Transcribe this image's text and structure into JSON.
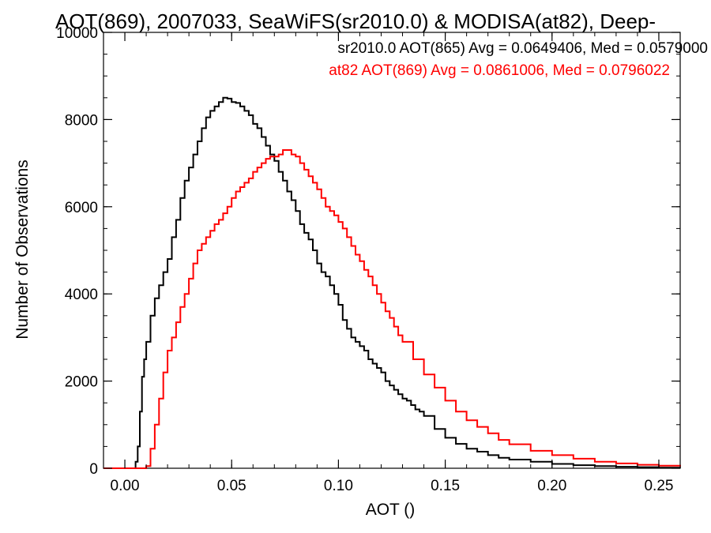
{
  "chart_data": {
    "type": "line",
    "title": "AOT(869), 2007033, SeaWiFS(sr2010.0) & MODISA(at82), Deep-",
    "xlabel": "AOT ()",
    "ylabel": "Number of Observations",
    "xlim": [
      -0.01,
      0.26
    ],
    "ylim": [
      0,
      10000
    ],
    "grid": false,
    "legend_placement": "top-right",
    "x_ticks": [
      0.0,
      0.05,
      0.1,
      0.15,
      0.2,
      0.25
    ],
    "x_tick_labels": [
      "0.00",
      "0.05",
      "0.10",
      "0.15",
      "0.20",
      "0.25"
    ],
    "y_ticks": [
      0,
      2000,
      4000,
      6000,
      8000,
      10000
    ],
    "y_tick_labels": [
      "0",
      "2000",
      "4000",
      "6000",
      "8000",
      "10000"
    ],
    "legend": [
      "sr2010.0 AOT(865) Avg = 0.0649406, Med = 0.0579000",
      "at82 AOT(869) Avg = 0.0861006, Med = 0.0796022"
    ],
    "series": [
      {
        "color": "#000000",
        "points": [
          [
            -0.01,
            0
          ],
          [
            0.004,
            0
          ],
          [
            0.005,
            150
          ],
          [
            0.006,
            500
          ],
          [
            0.007,
            1300
          ],
          [
            0.008,
            2100
          ],
          [
            0.009,
            2500
          ],
          [
            0.01,
            2900
          ],
          [
            0.012,
            3500
          ],
          [
            0.014,
            3900
          ],
          [
            0.016,
            4200
          ],
          [
            0.018,
            4500
          ],
          [
            0.02,
            4800
          ],
          [
            0.022,
            5300
          ],
          [
            0.024,
            5700
          ],
          [
            0.026,
            6200
          ],
          [
            0.028,
            6600
          ],
          [
            0.03,
            6900
          ],
          [
            0.032,
            7200
          ],
          [
            0.034,
            7500
          ],
          [
            0.036,
            7800
          ],
          [
            0.038,
            8050
          ],
          [
            0.04,
            8200
          ],
          [
            0.042,
            8300
          ],
          [
            0.044,
            8400
          ],
          [
            0.046,
            8500
          ],
          [
            0.048,
            8480
          ],
          [
            0.05,
            8400
          ],
          [
            0.052,
            8380
          ],
          [
            0.054,
            8300
          ],
          [
            0.056,
            8200
          ],
          [
            0.058,
            8100
          ],
          [
            0.06,
            7900
          ],
          [
            0.062,
            7800
          ],
          [
            0.064,
            7600
          ],
          [
            0.066,
            7400
          ],
          [
            0.068,
            7200
          ],
          [
            0.07,
            7050
          ],
          [
            0.072,
            6800
          ],
          [
            0.074,
            6600
          ],
          [
            0.076,
            6350
          ],
          [
            0.078,
            6150
          ],
          [
            0.08,
            5900
          ],
          [
            0.082,
            5600
          ],
          [
            0.084,
            5400
          ],
          [
            0.086,
            5250
          ],
          [
            0.088,
            5000
          ],
          [
            0.09,
            4700
          ],
          [
            0.092,
            4500
          ],
          [
            0.094,
            4400
          ],
          [
            0.096,
            4200
          ],
          [
            0.098,
            4000
          ],
          [
            0.1,
            3750
          ],
          [
            0.102,
            3400
          ],
          [
            0.104,
            3200
          ],
          [
            0.106,
            3000
          ],
          [
            0.108,
            2900
          ],
          [
            0.11,
            2800
          ],
          [
            0.112,
            2700
          ],
          [
            0.114,
            2500
          ],
          [
            0.116,
            2400
          ],
          [
            0.118,
            2300
          ],
          [
            0.12,
            2200
          ],
          [
            0.122,
            2000
          ],
          [
            0.124,
            1900
          ],
          [
            0.126,
            1800
          ],
          [
            0.128,
            1700
          ],
          [
            0.13,
            1600
          ],
          [
            0.132,
            1550
          ],
          [
            0.134,
            1450
          ],
          [
            0.136,
            1350
          ],
          [
            0.138,
            1300
          ],
          [
            0.14,
            1200
          ],
          [
            0.145,
            900
          ],
          [
            0.15,
            700
          ],
          [
            0.155,
            560
          ],
          [
            0.16,
            450
          ],
          [
            0.165,
            380
          ],
          [
            0.17,
            300
          ],
          [
            0.175,
            240
          ],
          [
            0.18,
            200
          ],
          [
            0.19,
            150
          ],
          [
            0.2,
            100
          ],
          [
            0.21,
            70
          ],
          [
            0.22,
            50
          ],
          [
            0.23,
            35
          ],
          [
            0.24,
            25
          ],
          [
            0.25,
            15
          ],
          [
            0.26,
            10
          ]
        ]
      },
      {
        "color": "#ff0000",
        "points": [
          [
            -0.01,
            0
          ],
          [
            0.009,
            0
          ],
          [
            0.01,
            50
          ],
          [
            0.012,
            450
          ],
          [
            0.014,
            1000
          ],
          [
            0.016,
            1600
          ],
          [
            0.018,
            2200
          ],
          [
            0.02,
            2700
          ],
          [
            0.022,
            3000
          ],
          [
            0.024,
            3350
          ],
          [
            0.026,
            3700
          ],
          [
            0.028,
            4000
          ],
          [
            0.03,
            4350
          ],
          [
            0.032,
            4700
          ],
          [
            0.034,
            5000
          ],
          [
            0.036,
            5150
          ],
          [
            0.038,
            5300
          ],
          [
            0.04,
            5450
          ],
          [
            0.042,
            5600
          ],
          [
            0.044,
            5700
          ],
          [
            0.046,
            5850
          ],
          [
            0.048,
            6000
          ],
          [
            0.05,
            6200
          ],
          [
            0.052,
            6350
          ],
          [
            0.054,
            6450
          ],
          [
            0.056,
            6550
          ],
          [
            0.058,
            6650
          ],
          [
            0.06,
            6800
          ],
          [
            0.062,
            6900
          ],
          [
            0.064,
            7000
          ],
          [
            0.066,
            7100
          ],
          [
            0.068,
            7150
          ],
          [
            0.07,
            7150
          ],
          [
            0.072,
            7200
          ],
          [
            0.074,
            7300
          ],
          [
            0.076,
            7300
          ],
          [
            0.078,
            7200
          ],
          [
            0.08,
            7150
          ],
          [
            0.082,
            7000
          ],
          [
            0.084,
            6850
          ],
          [
            0.086,
            6700
          ],
          [
            0.088,
            6550
          ],
          [
            0.09,
            6400
          ],
          [
            0.092,
            6200
          ],
          [
            0.094,
            6000
          ],
          [
            0.096,
            5900
          ],
          [
            0.098,
            5800
          ],
          [
            0.1,
            5650
          ],
          [
            0.102,
            5500
          ],
          [
            0.104,
            5300
          ],
          [
            0.106,
            5100
          ],
          [
            0.108,
            4900
          ],
          [
            0.11,
            4750
          ],
          [
            0.112,
            4550
          ],
          [
            0.114,
            4400
          ],
          [
            0.116,
            4200
          ],
          [
            0.118,
            4000
          ],
          [
            0.12,
            3800
          ],
          [
            0.122,
            3600
          ],
          [
            0.124,
            3450
          ],
          [
            0.126,
            3250
          ],
          [
            0.128,
            3050
          ],
          [
            0.13,
            2900
          ],
          [
            0.135,
            2500
          ],
          [
            0.14,
            2150
          ],
          [
            0.145,
            1850
          ],
          [
            0.15,
            1550
          ],
          [
            0.155,
            1300
          ],
          [
            0.16,
            1100
          ],
          [
            0.165,
            950
          ],
          [
            0.17,
            800
          ],
          [
            0.175,
            650
          ],
          [
            0.18,
            550
          ],
          [
            0.19,
            400
          ],
          [
            0.2,
            300
          ],
          [
            0.21,
            220
          ],
          [
            0.22,
            150
          ],
          [
            0.23,
            110
          ],
          [
            0.24,
            80
          ],
          [
            0.25,
            60
          ],
          [
            0.26,
            40
          ]
        ]
      }
    ]
  }
}
